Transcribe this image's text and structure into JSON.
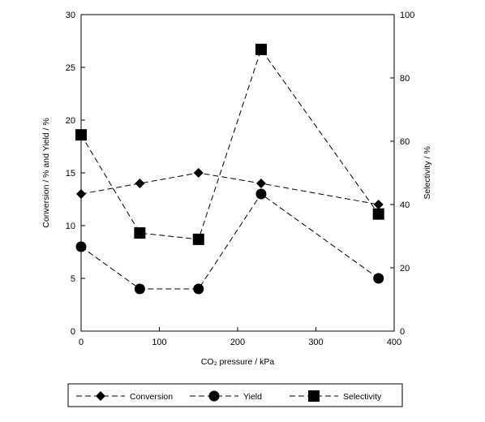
{
  "chart_data": {
    "type": "line",
    "x": [
      0,
      75,
      150,
      230,
      380
    ],
    "xlabel": "CO₂ pressure / kPa",
    "xlim": [
      0,
      400
    ],
    "xticks": [
      "0",
      "100",
      "200",
      "300",
      "400"
    ],
    "ylabel_left": "Conversion / %  and  Yield / %",
    "ylim_left": [
      0,
      30
    ],
    "yticks_left": [
      "0",
      "5",
      "10",
      "15",
      "20",
      "25",
      "30"
    ],
    "ylabel_right": "Selectivity / %",
    "ylim_right": [
      0,
      100
    ],
    "yticks_right": [
      "0",
      "20",
      "40",
      "60",
      "80",
      "100"
    ],
    "grid": false,
    "legend_position": "bottom",
    "series": [
      {
        "name": "Conversion",
        "axis": "left",
        "marker": "diamond",
        "values": [
          13,
          14,
          15,
          14,
          12
        ]
      },
      {
        "name": "Yield",
        "axis": "left",
        "marker": "circle",
        "values": [
          8,
          4,
          4,
          13,
          5
        ]
      },
      {
        "name": "Selectivity",
        "axis": "right",
        "marker": "square",
        "values": [
          62,
          31,
          29,
          89,
          37
        ]
      }
    ]
  }
}
